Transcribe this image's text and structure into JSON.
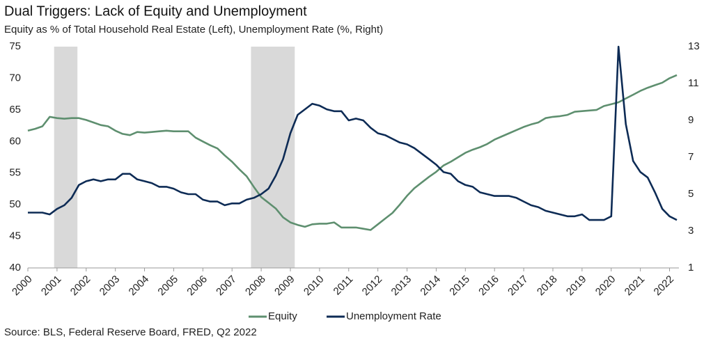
{
  "chart_data": {
    "type": "line",
    "title": "Dual Triggers: Lack of Equity and Unemployment",
    "subtitle": "Equity as % of Total Household Real Estate (Left), Unemployment Rate (%, Right)",
    "source": "Source: BLS, Federal Reserve Board, FRED, Q2 2022",
    "x": [
      2000,
      2000.25,
      2000.5,
      2000.75,
      2001,
      2001.25,
      2001.5,
      2001.75,
      2002,
      2002.25,
      2002.5,
      2002.75,
      2003,
      2003.25,
      2003.5,
      2003.75,
      2004,
      2004.25,
      2004.5,
      2004.75,
      2005,
      2005.25,
      2005.5,
      2005.75,
      2006,
      2006.25,
      2006.5,
      2006.75,
      2007,
      2007.25,
      2007.5,
      2007.75,
      2008,
      2008.25,
      2008.5,
      2008.75,
      2009,
      2009.25,
      2009.5,
      2009.75,
      2010,
      2010.25,
      2010.5,
      2010.75,
      2011,
      2011.25,
      2011.5,
      2011.75,
      2012,
      2012.25,
      2012.5,
      2012.75,
      2013,
      2013.25,
      2013.5,
      2013.75,
      2014,
      2014.25,
      2014.5,
      2014.75,
      2015,
      2015.25,
      2015.5,
      2015.75,
      2016,
      2016.25,
      2016.5,
      2016.75,
      2017,
      2017.25,
      2017.5,
      2017.75,
      2018,
      2018.25,
      2018.5,
      2018.75,
      2019,
      2019.25,
      2019.5,
      2019.75,
      2020,
      2020.25,
      2020.5,
      2020.75,
      2021,
      2021.25,
      2021.5,
      2021.75,
      2022,
      2022.25
    ],
    "series": [
      {
        "name": "Equity",
        "color": "#5e8f6f",
        "values": [
          61.7,
          62.0,
          62.4,
          63.9,
          63.7,
          63.6,
          63.7,
          63.7,
          63.4,
          63.0,
          62.6,
          62.4,
          61.7,
          61.2,
          61.0,
          61.5,
          61.4,
          61.5,
          61.6,
          61.7,
          61.6,
          61.6,
          61.6,
          60.6,
          60.0,
          59.4,
          58.9,
          57.8,
          56.8,
          55.6,
          54.5,
          52.8,
          51.2,
          50.3,
          49.4,
          48.0,
          47.2,
          46.8,
          46.5,
          46.9,
          47.0,
          47.0,
          47.2,
          46.4,
          46.4,
          46.4,
          46.2,
          46.0,
          46.9,
          47.8,
          48.7,
          50.0,
          51.4,
          52.6,
          53.5,
          54.4,
          55.2,
          56.2,
          56.8,
          57.5,
          58.2,
          58.7,
          59.1,
          59.6,
          60.3,
          60.8,
          61.3,
          61.8,
          62.3,
          62.7,
          63.0,
          63.7,
          63.9,
          64.0,
          64.2,
          64.7,
          64.8,
          64.9,
          65.0,
          65.6,
          65.9,
          66.2,
          66.8,
          67.4,
          68.0,
          68.5,
          68.9,
          69.3,
          70.0,
          70.5
        ]
      },
      {
        "name": "Unemployment Rate",
        "color": "#0d2b55",
        "axis": "y2",
        "values": [
          4.0,
          4.0,
          4.0,
          3.9,
          4.2,
          4.4,
          4.8,
          5.5,
          5.7,
          5.8,
          5.7,
          5.8,
          5.8,
          6.1,
          6.1,
          5.8,
          5.7,
          5.6,
          5.4,
          5.4,
          5.3,
          5.1,
          5.0,
          5.0,
          4.7,
          4.6,
          4.6,
          4.4,
          4.5,
          4.5,
          4.7,
          4.8,
          5.0,
          5.3,
          6.0,
          6.9,
          8.3,
          9.3,
          9.6,
          9.9,
          9.8,
          9.6,
          9.5,
          9.5,
          9.0,
          9.1,
          9.0,
          8.6,
          8.3,
          8.2,
          8.0,
          7.8,
          7.7,
          7.5,
          7.2,
          6.9,
          6.6,
          6.2,
          6.1,
          5.7,
          5.5,
          5.4,
          5.1,
          5.0,
          4.9,
          4.9,
          4.9,
          4.8,
          4.6,
          4.4,
          4.3,
          4.1,
          4.0,
          3.9,
          3.8,
          3.8,
          3.9,
          3.6,
          3.6,
          3.6,
          3.8,
          13.0,
          8.8,
          6.8,
          6.2,
          5.9,
          5.1,
          4.2,
          3.8,
          3.6
        ]
      }
    ],
    "shaded_periods": [
      [
        2000.9,
        2001.7
      ],
      [
        2007.65,
        2009.15
      ]
    ],
    "shade_color": "#d9d9d9",
    "xlim": [
      2000,
      2022.25
    ],
    "xticks": [
      2000,
      2001,
      2002,
      2003,
      2004,
      2005,
      2006,
      2007,
      2008,
      2009,
      2010,
      2011,
      2012,
      2013,
      2014,
      2015,
      2016,
      2017,
      2018,
      2019,
      2020,
      2021,
      2022
    ],
    "ylim": [
      40,
      75
    ],
    "yticks": [
      40,
      45,
      50,
      55,
      60,
      65,
      70,
      75
    ],
    "y2lim": [
      1,
      13
    ],
    "y2ticks": [
      1,
      3,
      5,
      7,
      9,
      11,
      13
    ],
    "grid": false,
    "legend": "bottom"
  }
}
